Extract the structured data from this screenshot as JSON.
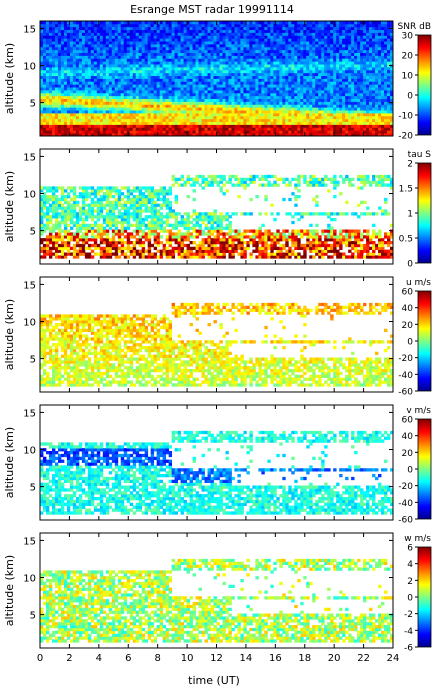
{
  "title": "Esrange MST radar 19991114",
  "xlabel": "time (UT)",
  "ylabel": "altitude (km)",
  "colormap": [
    "#00008f",
    "#0000ff",
    "#0080ff",
    "#00ffff",
    "#80ff80",
    "#ffff00",
    "#ff8000",
    "#ff0000",
    "#800000"
  ],
  "chart_data": [
    {
      "type": "heatmap",
      "quantity": "SNR",
      "colorbar_label": "SNR dB",
      "clim": [
        -20,
        30
      ],
      "colorbar_ticks": [
        "30",
        "20",
        "10",
        "0",
        "-10",
        "-20"
      ],
      "xlim": [
        0,
        24
      ],
      "ylim": [
        0.5,
        16
      ],
      "yticks": [
        "15",
        "10",
        "5"
      ],
      "xtick_labels_shown": false
    },
    {
      "type": "heatmap",
      "quantity": "tau",
      "colorbar_label": "tau S",
      "clim": [
        0,
        2
      ],
      "colorbar_ticks": [
        "2",
        "1.5",
        "1",
        "0.5",
        "0"
      ],
      "xlim": [
        0,
        24
      ],
      "ylim": [
        0.5,
        16
      ],
      "yticks": [
        "15",
        "10",
        "5"
      ],
      "xtick_labels_shown": false
    },
    {
      "type": "heatmap",
      "quantity": "u",
      "colorbar_label": "u m/s",
      "clim": [
        -60,
        60
      ],
      "colorbar_ticks": [
        "60",
        "40",
        "20",
        "0",
        "-20",
        "-40",
        "-60"
      ],
      "xlim": [
        0,
        24
      ],
      "ylim": [
        0.5,
        16
      ],
      "yticks": [
        "15",
        "10",
        "5"
      ],
      "xtick_labels_shown": false
    },
    {
      "type": "heatmap",
      "quantity": "v",
      "colorbar_label": "v m/s",
      "clim": [
        -60,
        60
      ],
      "colorbar_ticks": [
        "60",
        "40",
        "20",
        "0",
        "-20",
        "-40",
        "-60"
      ],
      "xlim": [
        0,
        24
      ],
      "ylim": [
        0.5,
        16
      ],
      "yticks": [
        "15",
        "10",
        "5"
      ],
      "xtick_labels_shown": false
    },
    {
      "type": "heatmap",
      "quantity": "w",
      "colorbar_label": "w m/s",
      "clim": [
        -6,
        6
      ],
      "colorbar_ticks": [
        "6",
        "4",
        "2",
        "0",
        "-2",
        "-4",
        "-6"
      ],
      "xlim": [
        0,
        24
      ],
      "ylim": [
        0.5,
        16
      ],
      "yticks": [
        "15",
        "10",
        "5"
      ],
      "xtick_labels_shown": true,
      "xticks": [
        "0",
        "2",
        "4",
        "6",
        "8",
        "10",
        "12",
        "14",
        "16",
        "18",
        "20",
        "22",
        "24"
      ]
    }
  ]
}
